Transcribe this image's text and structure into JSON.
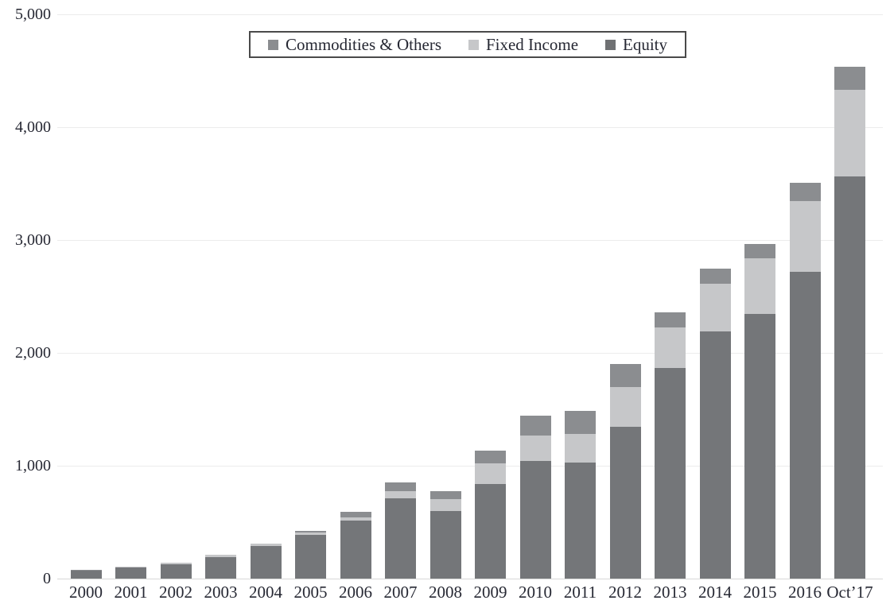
{
  "figure": {
    "background_color": "#ffffff",
    "text_color": "#262833",
    "gridline_color": "#ececec",
    "axis_line_color": "#d8d8d8"
  },
  "chart_data": {
    "type": "bar",
    "stacked": true,
    "title": "",
    "xlabel": "",
    "ylabel": "",
    "categories": [
      "2000",
      "2001",
      "2002",
      "2003",
      "2004",
      "2005",
      "2006",
      "2007",
      "2008",
      "2009",
      "2010",
      "2011",
      "2012",
      "2013",
      "2014",
      "2015",
      "2016",
      "Oct’17"
    ],
    "series": [
      {
        "name": "Equity",
        "color": "#747679",
        "values": [
          72,
          97,
          125,
          193,
          286,
          389,
          514,
          711,
          599,
          838,
          1042,
          1028,
          1345,
          1866,
          2190,
          2345,
          2718,
          3563
        ]
      },
      {
        "name": "Fixed Income",
        "color": "#c6c7c9",
        "values": [
          2,
          6,
          14,
          16,
          23,
          21,
          28,
          63,
          106,
          183,
          226,
          254,
          352,
          359,
          423,
          493,
          627,
          768
        ]
      },
      {
        "name": "Commodities & Others",
        "color": "#8b8d90",
        "values": [
          5,
          2,
          3,
          3,
          3,
          12,
          50,
          77,
          69,
          113,
          176,
          204,
          204,
          134,
          134,
          127,
          162,
          204
        ]
      }
    ],
    "stack_order": "series array order, bottom to top",
    "ylim": [
      0,
      5000
    ],
    "y_tick_interval": 1000,
    "y_tick_labels": [
      "0",
      "1,000",
      "2,000",
      "3,000",
      "4,000",
      "5,000"
    ],
    "grid": true,
    "legend_position": "top-center-boxed",
    "legend": [
      {
        "label": "Commodities & Others",
        "color": "#8b8d90"
      },
      {
        "label": "Fixed Income",
        "color": "#c6c7c9"
      },
      {
        "label": "Equity",
        "color": "#6f7173"
      }
    ]
  }
}
